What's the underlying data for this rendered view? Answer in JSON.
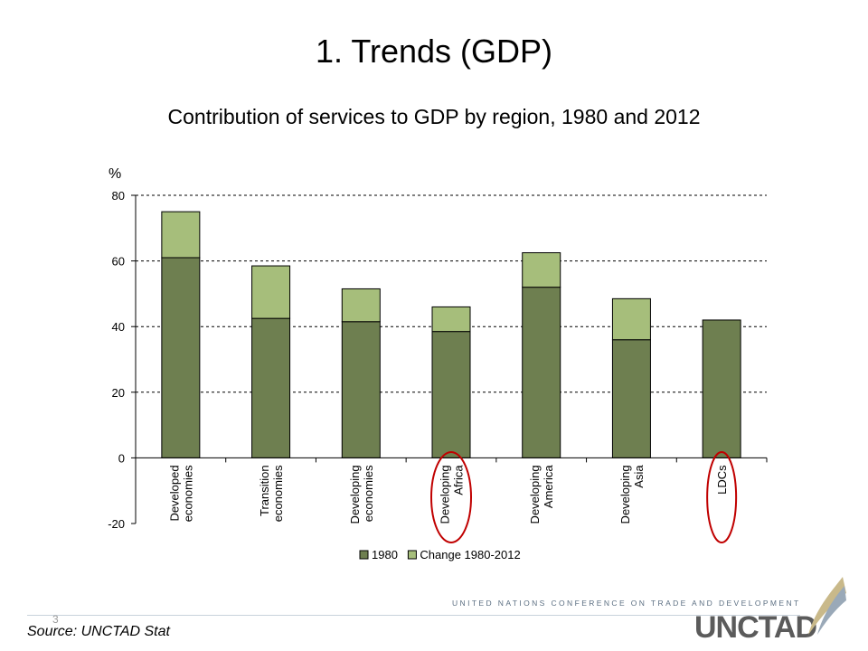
{
  "slide": {
    "title": "1. Trends (GDP)",
    "slide_number": "3",
    "source": "Source: UNCTAD Stat",
    "footer_org": "UNITED NATIONS CONFERENCE ON TRADE AND DEVELOPMENT",
    "logo_text": "UNCTAD"
  },
  "chart_data": {
    "type": "bar",
    "stacked": true,
    "title": "Contribution of services to GDP by region, 1980 and 2012",
    "ylabel": "%",
    "xlabel": "",
    "ylim": [
      -20,
      80
    ],
    "yticks": [
      -20,
      0,
      20,
      40,
      60,
      80
    ],
    "grid": true,
    "legend_position": "bottom",
    "categories": [
      [
        "Developed",
        "economies"
      ],
      [
        "Transition",
        "economies"
      ],
      [
        "Developing",
        "economies"
      ],
      [
        "Developing",
        "Africa"
      ],
      [
        "Developing",
        "America"
      ],
      [
        "Developing",
        "Asia"
      ],
      [
        "LDCs"
      ]
    ],
    "series": [
      {
        "name": "1980",
        "color": "#6e7f50",
        "values": [
          61,
          42.5,
          41.5,
          38.5,
          52,
          36,
          42
        ]
      },
      {
        "name": "Change 1980-2012",
        "color": "#a6be7b",
        "values": [
          14,
          16,
          10,
          7.5,
          10.5,
          12.5,
          0
        ]
      }
    ],
    "annotations": [
      {
        "type": "circle",
        "category_index": 3,
        "color": "#c00000"
      },
      {
        "type": "circle",
        "category_index": 6,
        "color": "#c00000"
      }
    ]
  }
}
